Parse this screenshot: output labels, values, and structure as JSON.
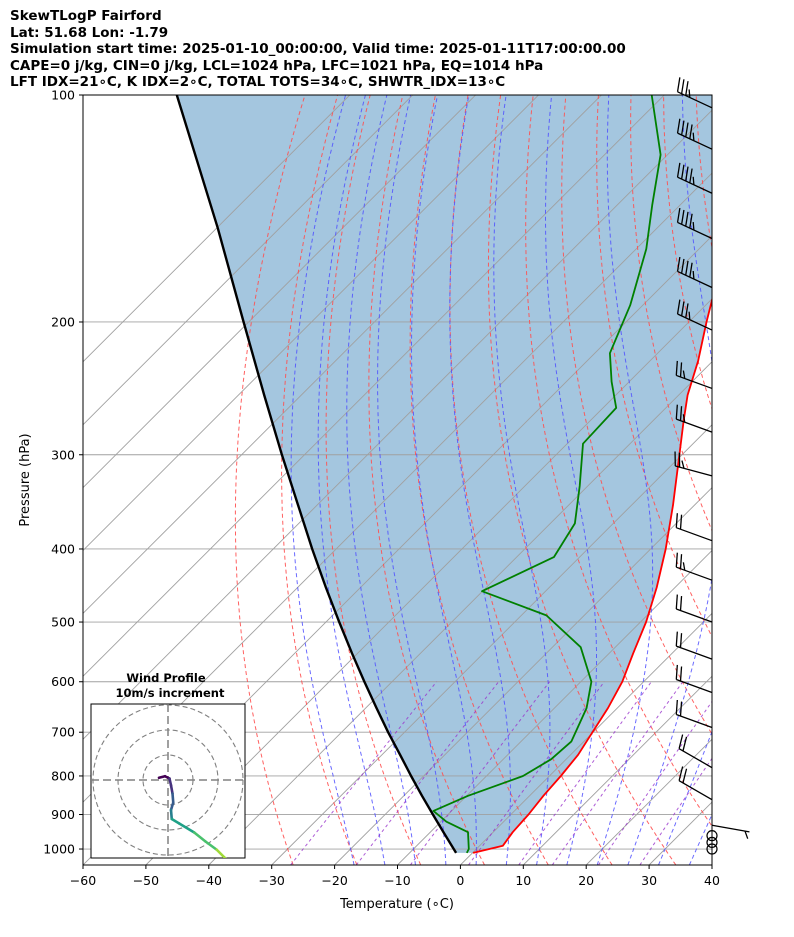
{
  "header": {
    "line1": "SkewTLogP Fairford",
    "line2": "Lat: 51.68   Lon: -1.79",
    "line3": "Simulation start time: 2025-01-10_00:00:00, Valid time: 2025-01-11T17:00:00.00",
    "line4": "CAPE=0 j/kg, CIN=0 j/kg, LCL=1024 hPa, LFC=1021 hPa, EQ=1014 hPa",
    "line5": "LFT IDX=21∘C, K IDX=2∘C, TOTAL TOTS=34∘C, SHWTR_IDX=13∘C"
  },
  "colors": {
    "temperature": "#ff0000",
    "dewpoint": "#008000",
    "parcel": "#000000",
    "cape_fill": "#a4c6df",
    "isotherm": "#a0a0a0",
    "dry_adiabat": "#ff5050",
    "moist_adiabat": "#5050ff",
    "mixing_ratio": "#9933cc",
    "inset_grid": "#808080"
  },
  "chart_data": {
    "type": "skewt",
    "xlabel": "Temperature (∘C)",
    "ylabel": "Pressure (hPa)",
    "xlim": [
      -60,
      40
    ],
    "ylim": [
      1050,
      100
    ],
    "x_ticks": [
      "−60",
      "−50",
      "−40",
      "−30",
      "−20",
      "−10",
      "0",
      "10",
      "20",
      "30",
      "40"
    ],
    "x_tick_values": [
      -60,
      -50,
      -40,
      -30,
      -20,
      -10,
      0,
      10,
      20,
      30,
      40
    ],
    "y_ticks": [
      1000,
      900,
      800,
      700,
      600,
      500,
      400,
      300,
      200,
      100
    ],
    "y_tick_labels": [
      "1000",
      "900",
      "800",
      "700",
      "600",
      "500",
      "400",
      "300",
      "200",
      "100"
    ],
    "grid": true,
    "series": [
      {
        "key": "temperature",
        "points": [
          [
            1012,
            0.1
          ],
          [
            990,
            3.7
          ],
          [
            950,
            3.1
          ],
          [
            900,
            2.8
          ],
          [
            850,
            2.2
          ],
          [
            800,
            1.8
          ],
          [
            750,
            1.2
          ],
          [
            700,
            -0.1
          ],
          [
            650,
            -1.5
          ],
          [
            600,
            -3.4
          ],
          [
            550,
            -6.2
          ],
          [
            500,
            -9.1
          ],
          [
            450,
            -12.9
          ],
          [
            400,
            -17.6
          ],
          [
            350,
            -23.4
          ],
          [
            300,
            -30.4
          ],
          [
            270,
            -35.2
          ],
          [
            250,
            -38.6
          ],
          [
            225,
            -42.4
          ],
          [
            200,
            -47.2
          ],
          [
            180,
            -51.3
          ],
          [
            150,
            -57.2
          ],
          [
            130,
            -62.0
          ],
          [
            110,
            -67.6
          ],
          [
            100,
            -71.7
          ]
        ]
      },
      {
        "key": "dewpoint",
        "points": [
          [
            1012,
            -0.9
          ],
          [
            1000,
            -1.2
          ],
          [
            950,
            -4.0
          ],
          [
            920,
            -9.1
          ],
          [
            890,
            -12.9
          ],
          [
            850,
            -9.8
          ],
          [
            800,
            -4.2
          ],
          [
            760,
            -2.4
          ],
          [
            720,
            -2.0
          ],
          [
            650,
            -4.9
          ],
          [
            600,
            -8.3
          ],
          [
            540,
            -15.5
          ],
          [
            490,
            -26.0
          ],
          [
            455,
            -40.1
          ],
          [
            410,
            -34.1
          ],
          [
            370,
            -36.1
          ],
          [
            330,
            -41.3
          ],
          [
            290,
            -47.5
          ],
          [
            260,
            -47.9
          ],
          [
            240,
            -52.8
          ],
          [
            220,
            -57.6
          ],
          [
            190,
            -62.0
          ],
          [
            160,
            -68.4
          ],
          [
            140,
            -74.4
          ],
          [
            120,
            -81.1
          ],
          [
            100,
            -92.0
          ]
        ]
      },
      {
        "key": "parcel",
        "points": [
          [
            1012,
            -2.6
          ],
          [
            950,
            -7.9
          ],
          [
            900,
            -12.4
          ],
          [
            850,
            -17.1
          ],
          [
            800,
            -22.0
          ],
          [
            750,
            -27.1
          ],
          [
            700,
            -32.6
          ],
          [
            650,
            -38.3
          ],
          [
            600,
            -44.4
          ],
          [
            550,
            -50.9
          ],
          [
            500,
            -57.9
          ],
          [
            450,
            -65.5
          ],
          [
            400,
            -73.8
          ],
          [
            350,
            -83.0
          ],
          [
            300,
            -93.6
          ],
          [
            250,
            -105.9
          ],
          [
            200,
            -120.8
          ],
          [
            150,
            -139.9
          ],
          [
            100,
            -167.5
          ]
        ]
      }
    ],
    "wind_barbs": [
      {
        "p": 1000,
        "speed_kt": 0
      },
      {
        "p": 980,
        "speed_kt": 0
      },
      {
        "p": 960,
        "speed_kt": 0
      },
      {
        "p": 930,
        "speed_kt": 5,
        "dir_deg": 100
      },
      {
        "p": 860,
        "speed_kt": 20,
        "dir_deg": 300
      },
      {
        "p": 780,
        "speed_kt": 20,
        "dir_deg": 300
      },
      {
        "p": 690,
        "speed_kt": 20,
        "dir_deg": 290
      },
      {
        "p": 620,
        "speed_kt": 20,
        "dir_deg": 290
      },
      {
        "p": 560,
        "speed_kt": 20,
        "dir_deg": 290
      },
      {
        "p": 500,
        "speed_kt": 20,
        "dir_deg": 290
      },
      {
        "p": 440,
        "speed_kt": 25,
        "dir_deg": 290
      },
      {
        "p": 390,
        "speed_kt": 20,
        "dir_deg": 290
      },
      {
        "p": 320,
        "speed_kt": 25,
        "dir_deg": 285
      },
      {
        "p": 280,
        "speed_kt": 25,
        "dir_deg": 290
      },
      {
        "p": 245,
        "speed_kt": 25,
        "dir_deg": 290
      },
      {
        "p": 205,
        "speed_kt": 35,
        "dir_deg": 295
      },
      {
        "p": 180,
        "speed_kt": 45,
        "dir_deg": 295
      },
      {
        "p": 155,
        "speed_kt": 45,
        "dir_deg": 295
      },
      {
        "p": 135,
        "speed_kt": 45,
        "dir_deg": 295
      },
      {
        "p": 118,
        "speed_kt": 45,
        "dir_deg": 295
      },
      {
        "p": 104,
        "speed_kt": 35,
        "dir_deg": 295
      }
    ],
    "hodograph": {
      "title": "Wind Profile",
      "subtitle": "10m/s increment",
      "ring_increment_ms": 10,
      "max_ms": 30,
      "uv": [
        [
          -1.2,
          0.3
        ],
        [
          -0.4,
          0.5
        ],
        [
          0.2,
          0.2
        ],
        [
          0.4,
          -0.7
        ],
        [
          0.6,
          -1.8
        ],
        [
          0.7,
          -3.0
        ],
        [
          0.4,
          -4.0
        ],
        [
          0.5,
          -5.2
        ],
        [
          1.5,
          -5.8
        ],
        [
          3.5,
          -7.0
        ],
        [
          5.0,
          -8.2
        ],
        [
          6.5,
          -9.3
        ],
        [
          7.6,
          -10.4
        ],
        [
          8.2,
          -11.3
        ],
        [
          8.6,
          -11.9
        ]
      ]
    }
  }
}
